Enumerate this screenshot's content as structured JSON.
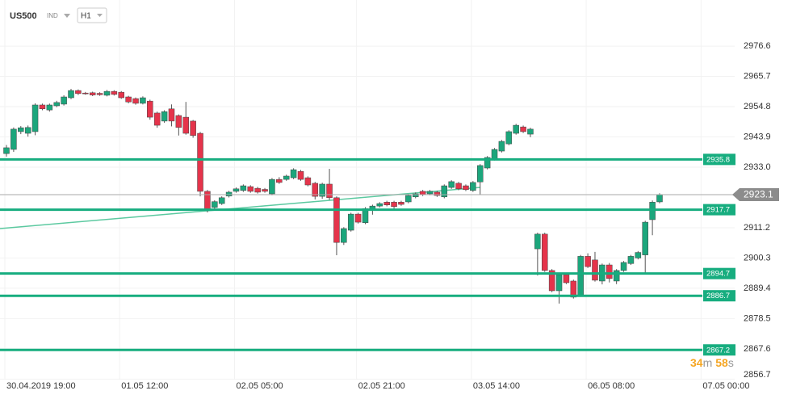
{
  "header": {
    "symbol": "US500",
    "market": "IND",
    "timeframe": "H1"
  },
  "countdown": [
    "34",
    "m",
    "58",
    "s"
  ],
  "chart_data": {
    "type": "candlestick",
    "categories": [
      "30.04.2019 19:00",
      null,
      null,
      null,
      null,
      null,
      null,
      null,
      null,
      null,
      null,
      null,
      null,
      null,
      null,
      null,
      "01.05 12:00",
      null,
      null,
      null,
      null,
      null,
      null,
      null,
      null,
      null,
      null,
      null,
      null,
      null,
      null,
      null,
      "02.05 05:00",
      null,
      null,
      null,
      null,
      null,
      null,
      null,
      null,
      null,
      null,
      null,
      null,
      null,
      null,
      null,
      null,
      "02.05 21:00",
      null,
      null,
      null,
      null,
      null,
      null,
      null,
      null,
      null,
      null,
      null,
      null,
      null,
      null,
      null,
      "03.05 14:00",
      null,
      null,
      null,
      null,
      null,
      null,
      null,
      null,
      null,
      null,
      null,
      null,
      null,
      null,
      null,
      "06.05 08:00",
      null,
      null,
      null,
      null,
      null,
      null,
      null,
      null,
      null,
      null,
      null,
      null,
      null,
      null,
      null,
      "07.05 00:00"
    ],
    "open": [
      2937.9,
      2939.4,
      2945.8,
      2945.2,
      2945.8,
      2955.4,
      2953.6,
      2955.1,
      2955.7,
      2958.0,
      2960.6,
      2959.7,
      2959.8,
      2959.6,
      2958.9,
      2960.3,
      2960.0,
      2958.3,
      2957.7,
      2956.0,
      2956.8,
      2952.5,
      2949.6,
      2954.0,
      2951.6,
      2951.0,
      2949.6,
      2945.2,
      2924.3,
      2918.5,
      2919.9,
      2922.6,
      2924.3,
      2924.6,
      2926.0,
      2925.4,
      2925.0,
      2923.4,
      2928.6,
      2928.6,
      2929.2,
      2931.5,
      2929.2,
      2927.2,
      2922.5,
      2926.9,
      2922.0,
      2905.9,
      2910.3,
      2916.1,
      2913.0,
      2917.9,
      2919.0,
      2920.4,
      2920.4,
      2920.4,
      2920.5,
      2922.3,
      2924.3,
      2923.4,
      2924.0,
      2922.3,
      2925.7,
      2927.2,
      2926.3,
      2924.6,
      2927.7,
      2932.7,
      2935.9,
      2938.8,
      2941.4,
      2945.2,
      2947.5,
      2944.9,
      2903.6,
      2908.9,
      2895.8,
      2888.5,
      2894.3,
      2892.0,
      2886.8,
      2900.9,
      2899.6,
      2892.0,
      2897.8,
      2892.0,
      2895.8,
      2898.3,
      2900.3,
      2901.4,
      2914.1,
      2920.5,
      null,
      null,
      null,
      null,
      null,
      null
    ],
    "high": [
      2941.0,
      2947.3,
      2947.8,
      2948.0,
      2956.0,
      2955.9,
      2955.9,
      2956.9,
      2958.9,
      2961.2,
      2961.0,
      2960.1,
      2960.2,
      2960.0,
      2960.8,
      2960.7,
      2960.4,
      2958.7,
      2958.1,
      2958.5,
      2957.3,
      2953.0,
      2953.5,
      2955.6,
      2952.0,
      2956.5,
      2950.0,
      2945.7,
      2924.8,
      2921.1,
      2922.5,
      2924.5,
      2925.7,
      2926.8,
      2926.5,
      2925.9,
      2925.5,
      2929.1,
      2929.4,
      2930.3,
      2932.6,
      2932.0,
      2929.7,
      2927.7,
      2927.4,
      2932.4,
      2922.5,
      2911.4,
      2916.6,
      2916.6,
      2918.6,
      2919.5,
      2920.4,
      2920.9,
      2920.9,
      2920.9,
      2923.3,
      2923.9,
      2924.8,
      2924.8,
      2924.5,
      2926.8,
      2928.3,
      2927.7,
      2926.8,
      2928.0,
      2934.1,
      2937.0,
      2939.9,
      2942.8,
      2946.3,
      2948.6,
      2948.0,
      2947.2,
      2909.4,
      2909.4,
      2896.3,
      2894.8,
      2894.8,
      2892.5,
      2901.4,
      2902.0,
      2902.5,
      2898.3,
      2898.5,
      2896.3,
      2899.2,
      2901.4,
      2902.8,
      2913.7,
      2921.0,
      2923.6,
      null,
      null,
      null,
      null,
      null,
      null
    ],
    "low": [
      2936.8,
      2938.5,
      2944.9,
      2944.0,
      2944.5,
      2953.5,
      2953.0,
      2954.6,
      2955.2,
      2957.5,
      2959.0,
      2959.1,
      2958.6,
      2958.7,
      2958.5,
      2958.8,
      2957.6,
      2956.0,
      2955.5,
      2955.6,
      2950.1,
      2947.2,
      2949.0,
      2947.7,
      2944.4,
      2944.7,
      2943.6,
      2922.5,
      2916.7,
      2918.0,
      2919.4,
      2922.1,
      2923.8,
      2924.1,
      2923.8,
      2923.5,
      2923.8,
      2922.9,
      2927.0,
      2928.1,
      2928.7,
      2928.1,
      2926.1,
      2921.4,
      2921.6,
      2921.2,
      2901.3,
      2905.0,
      2909.8,
      2912.7,
      2912.5,
      2915.9,
      2918.5,
      2918.9,
      2917.6,
      2919.1,
      2920.0,
      2921.8,
      2922.6,
      2922.9,
      2922.3,
      2921.8,
      2925.2,
      2924.7,
      2924.4,
      2924.1,
      2923.0,
      2932.2,
      2935.4,
      2938.3,
      2940.9,
      2944.7,
      2945.3,
      2943.8,
      2894.0,
      2895.3,
      2888.0,
      2883.9,
      2890.9,
      2885.7,
      2886.3,
      2896.7,
      2891.8,
      2890.8,
      2891.5,
      2890.9,
      2895.3,
      2897.8,
      2899.8,
      2894.6,
      2908.5,
      2920.0,
      null,
      null,
      null,
      null,
      null,
      null
    ],
    "close": [
      2940.0,
      2946.7,
      2947.2,
      2947.3,
      2955.4,
      2954.0,
      2955.4,
      2956.3,
      2958.3,
      2960.6,
      2959.5,
      2959.5,
      2959.0,
      2959.1,
      2960.3,
      2959.2,
      2958.0,
      2956.5,
      2956.0,
      2958.0,
      2951.0,
      2948.1,
      2953.0,
      2949.6,
      2947.3,
      2945.2,
      2944.4,
      2924.3,
      2917.6,
      2920.6,
      2922.0,
      2924.0,
      2925.2,
      2926.3,
      2924.3,
      2924.0,
      2924.3,
      2928.6,
      2927.5,
      2929.8,
      2932.1,
      2928.6,
      2926.6,
      2922.5,
      2926.9,
      2922.0,
      2905.9,
      2910.9,
      2916.1,
      2913.2,
      2918.1,
      2919.0,
      2919.9,
      2919.4,
      2918.8,
      2919.6,
      2922.8,
      2923.4,
      2923.1,
      2924.3,
      2922.8,
      2926.3,
      2927.8,
      2925.2,
      2924.9,
      2927.5,
      2933.6,
      2936.5,
      2939.4,
      2942.3,
      2945.8,
      2948.1,
      2945.8,
      2946.7,
      2908.9,
      2895.8,
      2888.5,
      2894.3,
      2891.4,
      2886.2,
      2900.9,
      2897.2,
      2892.3,
      2897.8,
      2892.9,
      2895.8,
      2898.7,
      2900.9,
      2902.3,
      2913.2,
      2920.4,
      2923.1,
      null,
      null,
      null,
      null,
      null,
      null
    ],
    "up_color": "#1ca67c",
    "down_color": "#e5344b",
    "ylim": [
      2853.6,
      2993.2
    ],
    "yticks": [
      2976.6,
      2965.7,
      2954.8,
      2943.9,
      {
        "value": 2933.0,
        "label": "2933.0"
      },
      2911.2,
      2900.3,
      2889.4,
      2878.5,
      2867.6,
      2856.7
    ],
    "grid": true,
    "levels": [
      2935.8,
      2917.7,
      2894.7,
      2886.7,
      2867.2
    ],
    "level_color": "#17ad7f",
    "last_price": 2923.1
  }
}
